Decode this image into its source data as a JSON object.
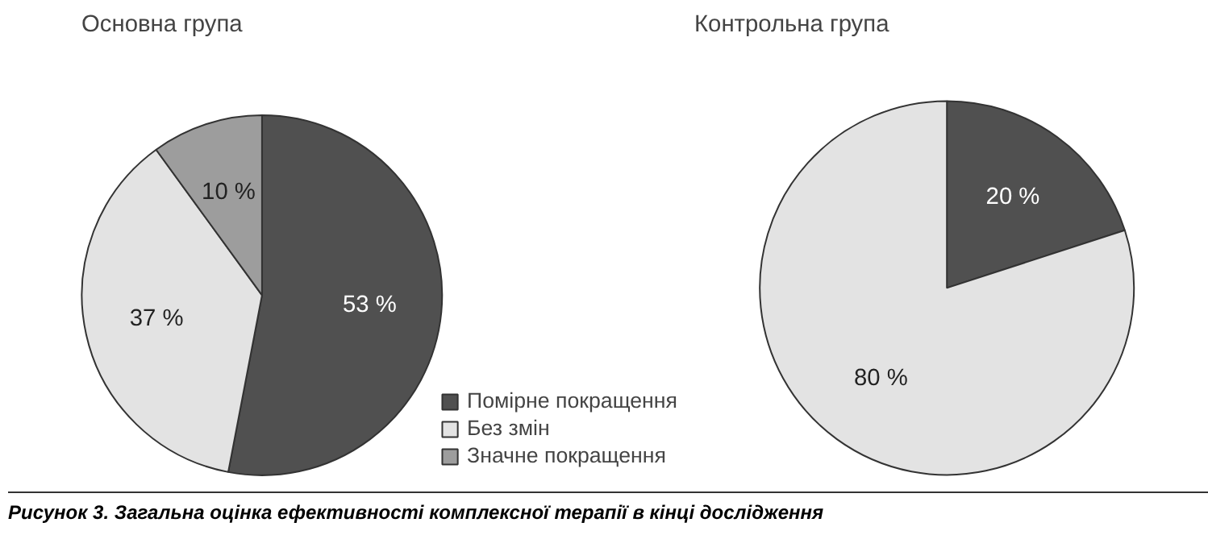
{
  "chart_data": [
    {
      "type": "pie",
      "title": "Основна група",
      "categories": [
        "Помірне покращення",
        "Без змін",
        "Значне покращення"
      ],
      "values": [
        53,
        37,
        10
      ],
      "colors": [
        "#505050",
        "#e3e3e3",
        "#9d9d9d"
      ],
      "value_labels": [
        "53 %",
        "37 %",
        "10 %"
      ],
      "legend": "bottom right",
      "annotations": [
        "Рисунок 3. Загальна оцінка ефективності комплексної терапії в кінці дослідження"
      ]
    },
    {
      "type": "pie",
      "title": "Контрольна група",
      "categories": [
        null,
        null
      ],
      "values": [
        20,
        80
      ],
      "colors": [
        "#505050",
        "#e3e3e3"
      ],
      "value_labels": [
        "20 %",
        "80 %"
      ]
    }
  ]
}
